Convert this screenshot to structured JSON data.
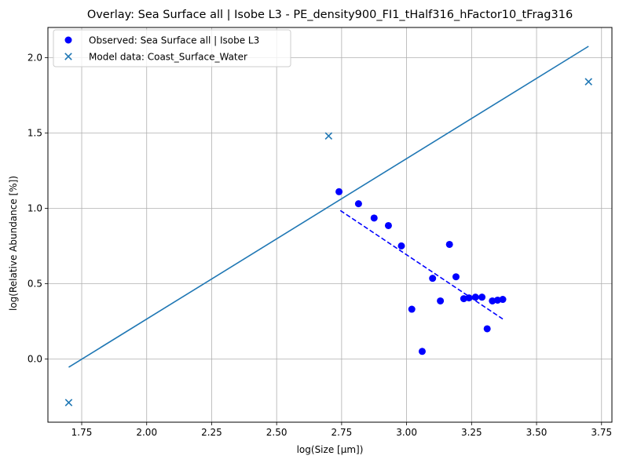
{
  "chart_data": {
    "type": "scatter",
    "title": "Overlay: Sea Surface all | Isobe L3 - PE_density900_FI1_tHalf316_hFactor10_tFrag316",
    "xlabel": "log(Size [µm])",
    "ylabel": "log(Relative Abundance [%])",
    "xlim": [
      1.62,
      3.79
    ],
    "ylim": [
      -0.42,
      2.2
    ],
    "xticks": [
      "1.75",
      "2.00",
      "2.25",
      "2.50",
      "2.75",
      "3.00",
      "3.25",
      "3.50",
      "3.75"
    ],
    "yticks": [
      "0.0",
      "0.5",
      "1.0",
      "1.5",
      "2.0"
    ],
    "grid": true,
    "legend_position": "top-left",
    "series": [
      {
        "name": "Observed: Sea Surface all | Isobe L3",
        "kind": "scatter-circle",
        "color": "#0000ff",
        "x": [
          2.74,
          2.815,
          2.875,
          2.93,
          2.98,
          3.02,
          3.06,
          3.1,
          3.13,
          3.165,
          3.19,
          3.22,
          3.24,
          3.265,
          3.29,
          3.31,
          3.33,
          3.35,
          3.37
        ],
        "y": [
          1.11,
          1.03,
          0.935,
          0.885,
          0.75,
          0.33,
          0.05,
          0.535,
          0.385,
          0.76,
          0.545,
          0.4,
          0.405,
          0.41,
          0.41,
          0.2,
          0.385,
          0.39,
          0.395
        ]
      },
      {
        "name": "Model data: Coast_Surface_Water",
        "kind": "scatter-x",
        "color": "#1f77b4",
        "x": [
          1.7,
          2.7,
          3.7
        ],
        "y": [
          -0.29,
          1.48,
          1.84
        ]
      },
      {
        "name": "",
        "kind": "line",
        "color": "#1f77b4",
        "x": [
          1.7,
          3.7
        ],
        "y": [
          -0.055,
          2.075
        ]
      },
      {
        "name": "",
        "kind": "dashed-line",
        "color": "#0000ff",
        "x": [
          2.745,
          3.37
        ],
        "y": [
          0.985,
          0.265
        ]
      }
    ]
  }
}
